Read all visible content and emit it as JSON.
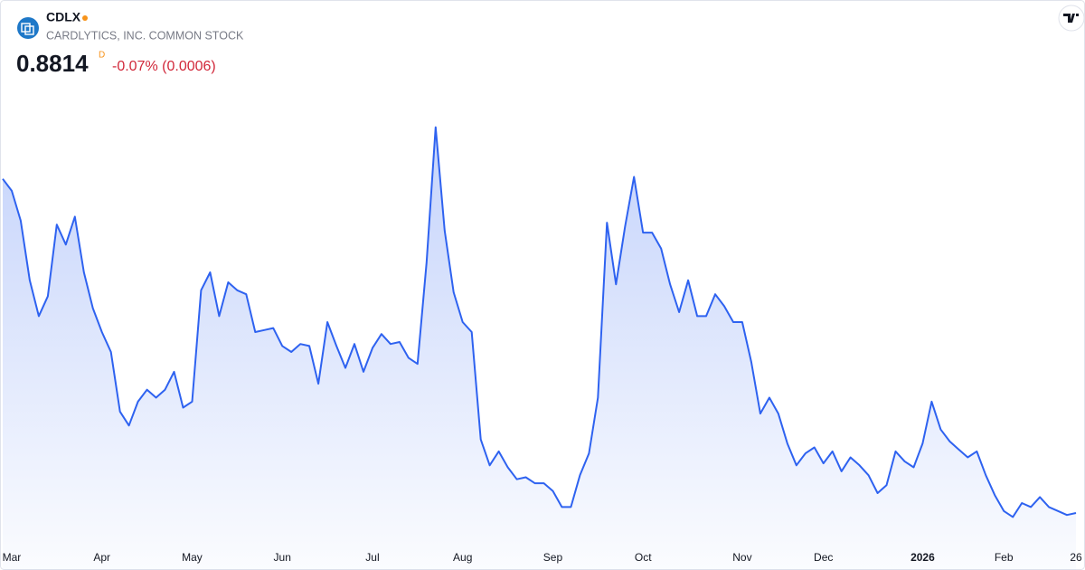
{
  "header": {
    "symbol": "CDLX",
    "name": "CARDLYTICS, INC. COMMON STOCK",
    "price": "0.8814",
    "price_flag": "D",
    "change": "-0.07% (0.0006)"
  },
  "chart_data": {
    "type": "area",
    "color": "#2e62f0",
    "ylim": [
      0.73,
      3.05
    ],
    "categories": [
      null,
      "Mar",
      null,
      null,
      null,
      null,
      null,
      null,
      null,
      null,
      null,
      "Apr",
      null,
      null,
      null,
      null,
      null,
      null,
      null,
      null,
      null,
      "May",
      null,
      null,
      null,
      null,
      null,
      null,
      null,
      null,
      null,
      "Jun",
      null,
      null,
      null,
      null,
      null,
      null,
      null,
      null,
      null,
      "Jul",
      null,
      null,
      null,
      null,
      null,
      null,
      null,
      null,
      null,
      "Aug",
      null,
      null,
      null,
      null,
      null,
      null,
      null,
      null,
      null,
      "Sep",
      null,
      null,
      null,
      null,
      null,
      null,
      null,
      null,
      null,
      "Oct",
      null,
      null,
      null,
      null,
      null,
      null,
      null,
      null,
      null,
      null,
      "Nov",
      null,
      null,
      null,
      null,
      null,
      null,
      null,
      null,
      "Dec",
      null,
      null,
      null,
      null,
      null,
      null,
      null,
      null,
      null,
      null,
      "2026",
      null,
      null,
      null,
      null,
      null,
      null,
      null,
      null,
      "Feb",
      null,
      null,
      null,
      null,
      null,
      null,
      null,
      "26"
    ],
    "values": [
      2.56,
      2.5,
      2.35,
      2.05,
      1.87,
      1.97,
      2.33,
      2.23,
      2.37,
      2.09,
      1.91,
      1.79,
      1.69,
      1.39,
      1.32,
      1.44,
      1.5,
      1.46,
      1.5,
      1.59,
      1.41,
      1.44,
      2.0,
      2.09,
      1.87,
      2.04,
      2.0,
      1.98,
      1.79,
      1.8,
      1.81,
      1.72,
      1.69,
      1.73,
      1.72,
      1.53,
      1.84,
      1.72,
      1.61,
      1.73,
      1.59,
      1.71,
      1.78,
      1.73,
      1.74,
      1.66,
      1.63,
      2.14,
      2.82,
      2.3,
      1.99,
      1.84,
      1.79,
      1.25,
      1.12,
      1.19,
      1.11,
      1.05,
      1.06,
      1.03,
      1.03,
      0.99,
      0.91,
      0.91,
      1.07,
      1.18,
      1.46,
      2.34,
      2.03,
      2.32,
      2.57,
      2.29,
      2.29,
      2.21,
      2.03,
      1.89,
      2.05,
      1.87,
      1.87,
      1.98,
      1.92,
      1.84,
      1.84,
      1.64,
      1.38,
      1.46,
      1.38,
      1.23,
      1.12,
      1.18,
      1.21,
      1.13,
      1.19,
      1.09,
      1.16,
      1.12,
      1.07,
      0.98,
      1.02,
      1.19,
      1.14,
      1.11,
      1.23,
      1.44,
      1.3,
      1.24,
      1.2,
      1.16,
      1.19,
      1.07,
      0.97,
      0.89,
      0.86,
      0.93,
      0.91,
      0.96,
      0.91,
      0.89,
      0.87,
      0.88
    ]
  }
}
